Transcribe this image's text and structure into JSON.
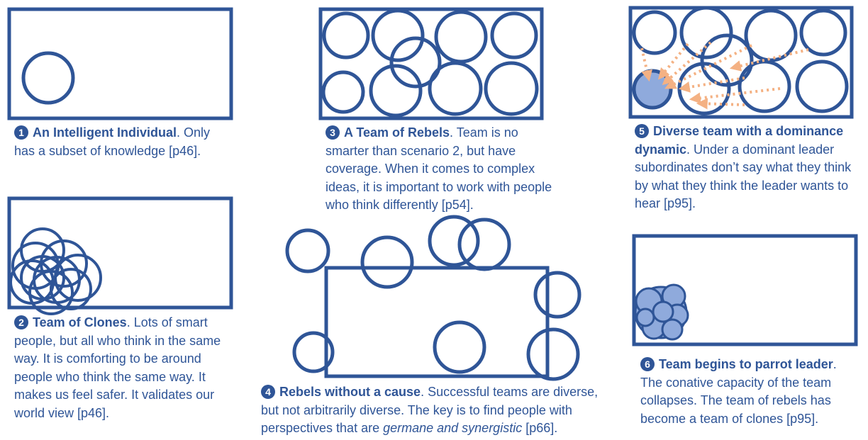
{
  "colors": {
    "accent": "#2f5597",
    "fill_light": "#8faadc",
    "arrow": "#f4b183"
  },
  "panels": [
    {
      "num": "1",
      "title": "An Intelligent Individual",
      "text_a": ". Only has a subset of knowledge [p46]."
    },
    {
      "num": "2",
      "title": "Team of Clones",
      "text_a": ". Lots of smart people, but all who think in the same way. It is comforting to be around people who think the same way. It makes us feel safer. It validates our world view [p46]."
    },
    {
      "num": "3",
      "title": "A Team of Rebels",
      "text_a": ". Team is no smarter than scenario 2, but have coverage. When it comes to complex ideas, it is important to work with people who think differently [p54]."
    },
    {
      "num": "4",
      "title": "Rebels without a cause",
      "text_a": ". Successful teams are diverse, but not arbitrarily diverse. The key is to find people with perspectives that are ",
      "text_em": "germane and synergistic",
      "text_b": " [p66]."
    },
    {
      "num": "5",
      "title": "Diverse team with a dominance dynamic",
      "text_a": ". Under a dominant leader subordinates don’t say what they think by what they think the leader wants to hear [p95]."
    },
    {
      "num": "6",
      "title": "Team begins to parrot leader",
      "text_a": ". The conative capacity of the team collapses. The team of rebels has become a team of clones [p95]."
    }
  ]
}
